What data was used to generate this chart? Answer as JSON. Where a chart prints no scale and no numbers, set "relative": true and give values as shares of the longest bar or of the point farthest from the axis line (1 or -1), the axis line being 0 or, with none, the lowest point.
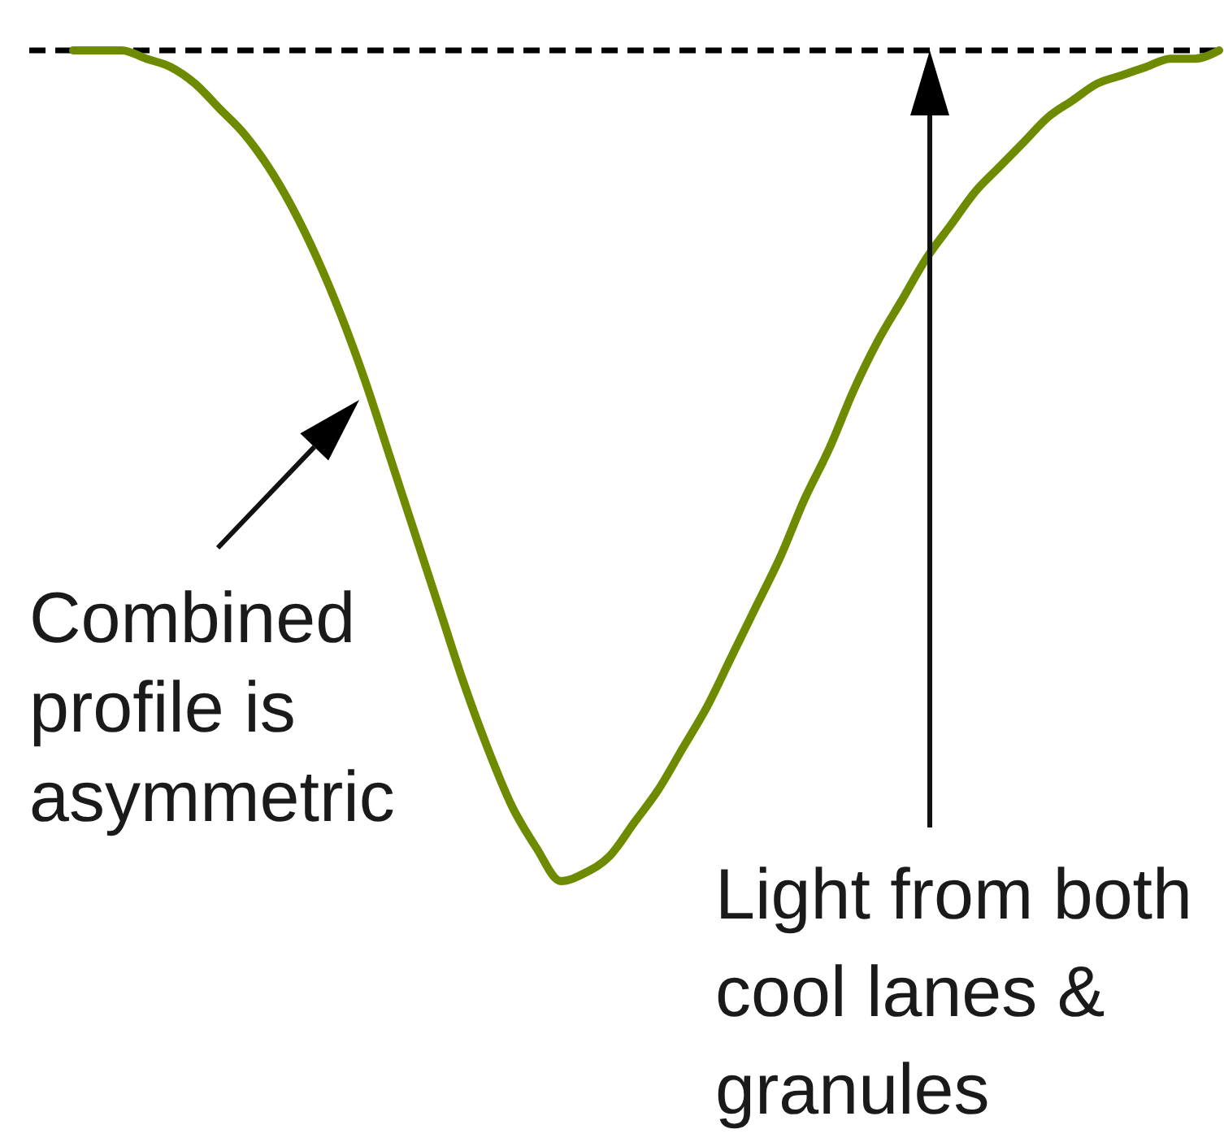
{
  "chart_data": {
    "type": "line",
    "relative": true,
    "categories": [
      null,
      null,
      null,
      null,
      null,
      null,
      null,
      null,
      null,
      null,
      null,
      null,
      null,
      null,
      null,
      null,
      null,
      null,
      null,
      null,
      null,
      null,
      null,
      null,
      null,
      null,
      null,
      null,
      null,
      null,
      null,
      null,
      null,
      null,
      null,
      null,
      null,
      null,
      null,
      null,
      null,
      null,
      null,
      null,
      null,
      null,
      null,
      null
    ],
    "series": [
      {
        "color": "#6e8b00",
        "values": [
          0,
          0,
          0,
          -0.01,
          -0.02,
          -0.04,
          -0.07,
          -0.1,
          -0.14,
          -0.19,
          -0.25,
          -0.32,
          -0.4,
          -0.49,
          -0.58,
          -0.67,
          -0.76,
          -0.84,
          -0.91,
          -0.96,
          -1.0,
          -0.99,
          -0.97,
          -0.93,
          -0.89,
          -0.84,
          -0.79,
          -0.73,
          -0.67,
          -0.61,
          -0.54,
          -0.48,
          -0.41,
          -0.35,
          -0.3,
          -0.25,
          -0.21,
          -0.17,
          -0.14,
          -0.11,
          -0.08,
          -0.06,
          -0.04,
          -0.03,
          -0.02,
          -0.01,
          -0.01,
          0
        ]
      }
    ],
    "annotations": [
      "Combined profile is asymmetric",
      "Light from both cool lanes & granules"
    ]
  }
}
